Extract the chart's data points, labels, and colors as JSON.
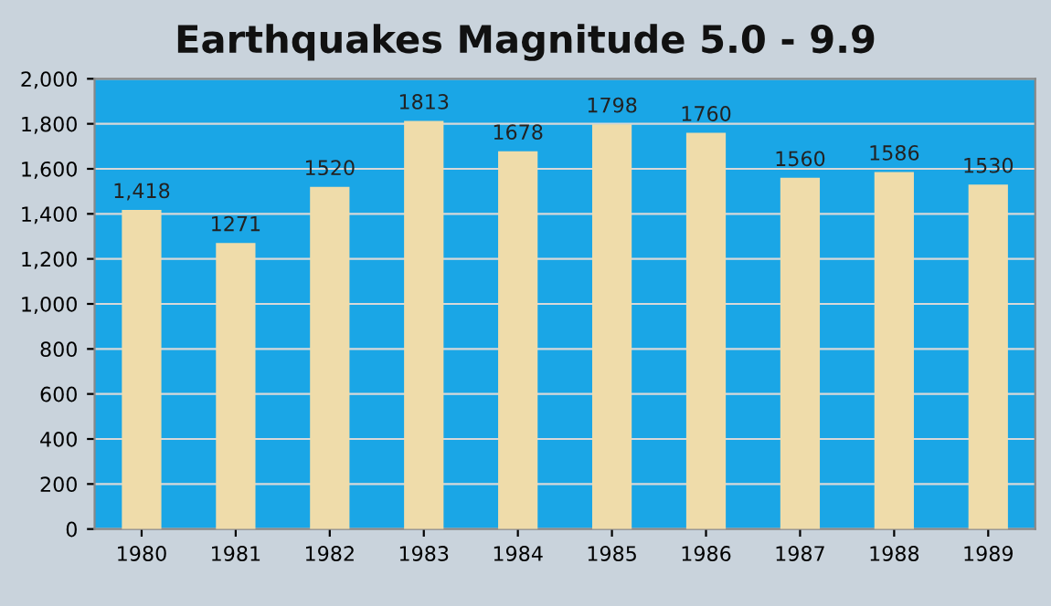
{
  "chart_data": {
    "type": "bar",
    "title": "Earthquakes Magnitude 5.0 - 9.9",
    "categories": [
      "1980",
      "1981",
      "1982",
      "1983",
      "1984",
      "1985",
      "1986",
      "1987",
      "1988",
      "1989"
    ],
    "values": [
      1418,
      1271,
      1520,
      1813,
      1678,
      1798,
      1760,
      1560,
      1586,
      1530
    ],
    "value_labels": [
      "1,418",
      "1271",
      "1520",
      "1813",
      "1678",
      "1798",
      "1760",
      "1560",
      "1586",
      "1530"
    ],
    "color": "#efdcaa",
    "ylim": [
      0,
      2000
    ],
    "yticks": [
      0,
      200,
      400,
      600,
      800,
      {
        "value": 1000,
        "label": "1,000"
      },
      {
        "value": 1200,
        "label": "1,200"
      },
      {
        "value": 1400,
        "label": "1,400"
      },
      {
        "value": 1600,
        "label": "1,600"
      },
      {
        "value": 1800,
        "label": "1,800"
      },
      {
        "value": 2000,
        "label": "2,000"
      }
    ],
    "grid": "y",
    "legend": false
  }
}
